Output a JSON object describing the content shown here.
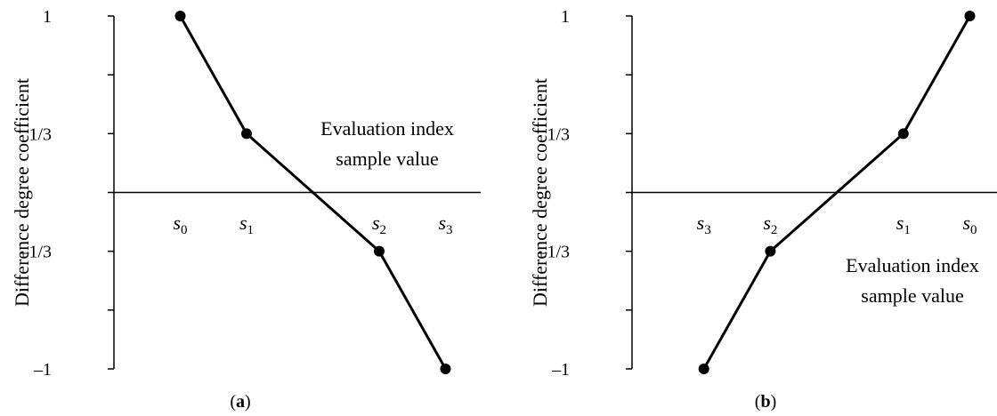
{
  "chart_data": [
    {
      "type": "line",
      "panel": "a",
      "caption": {
        "open": "(",
        "letter": "a",
        "close": ")"
      },
      "ylabel": "Difference degree coefficient",
      "yticks": [
        1,
        0.6667,
        0.3333,
        0,
        -0.3333,
        -0.6667,
        -1
      ],
      "ytick_labels": [
        {
          "value": 1,
          "label": "1"
        },
        {
          "value": 0.3333,
          "label": "1/3"
        },
        {
          "value": -0.3333,
          "label": "–1/3"
        },
        {
          "value": -1,
          "label": "–1"
        }
      ],
      "ylim": [
        -1,
        1
      ],
      "xlim": [
        0,
        5.5
      ],
      "x_categories": [
        {
          "x": 1,
          "base": "s",
          "sub": "0"
        },
        {
          "x": 2,
          "base": "s",
          "sub": "1"
        },
        {
          "x": 4,
          "base": "s",
          "sub": "2"
        },
        {
          "x": 5,
          "base": "s",
          "sub": "3"
        }
      ],
      "x_axis_annotation": [
        "Evaluation index",
        "sample value"
      ],
      "annotation_position": "upper-right",
      "series": [
        {
          "points": [
            [
              1,
              1
            ],
            [
              2,
              0.3333
            ],
            [
              4,
              -0.3333
            ],
            [
              5,
              -1
            ]
          ]
        }
      ]
    },
    {
      "type": "line",
      "panel": "b",
      "caption": {
        "open": "(",
        "letter": "b",
        "close": ")"
      },
      "ylabel": "Difference degree coefficient",
      "yticks": [
        1,
        0.6667,
        0.3333,
        0,
        -0.3333,
        -0.6667,
        -1
      ],
      "ytick_labels": [
        {
          "value": 1,
          "label": "1"
        },
        {
          "value": 0.3333,
          "label": "1/3"
        },
        {
          "value": -0.3333,
          "label": "–1/3"
        },
        {
          "value": -1,
          "label": "–1"
        }
      ],
      "ylim": [
        -1,
        1
      ],
      "xlim": [
        0,
        5.5
      ],
      "x_categories": [
        {
          "x": 1,
          "base": "s",
          "sub": "3"
        },
        {
          "x": 2,
          "base": "s",
          "sub": "2"
        },
        {
          "x": 4,
          "base": "s",
          "sub": "1"
        },
        {
          "x": 5,
          "base": "s",
          "sub": "0"
        }
      ],
      "x_axis_annotation": [
        "Evaluation index",
        "sample value"
      ],
      "annotation_position": "lower-right",
      "series": [
        {
          "points": [
            [
              1,
              -1
            ],
            [
              2,
              -0.3333
            ],
            [
              4,
              0.3333
            ],
            [
              5,
              1
            ]
          ]
        }
      ]
    }
  ]
}
